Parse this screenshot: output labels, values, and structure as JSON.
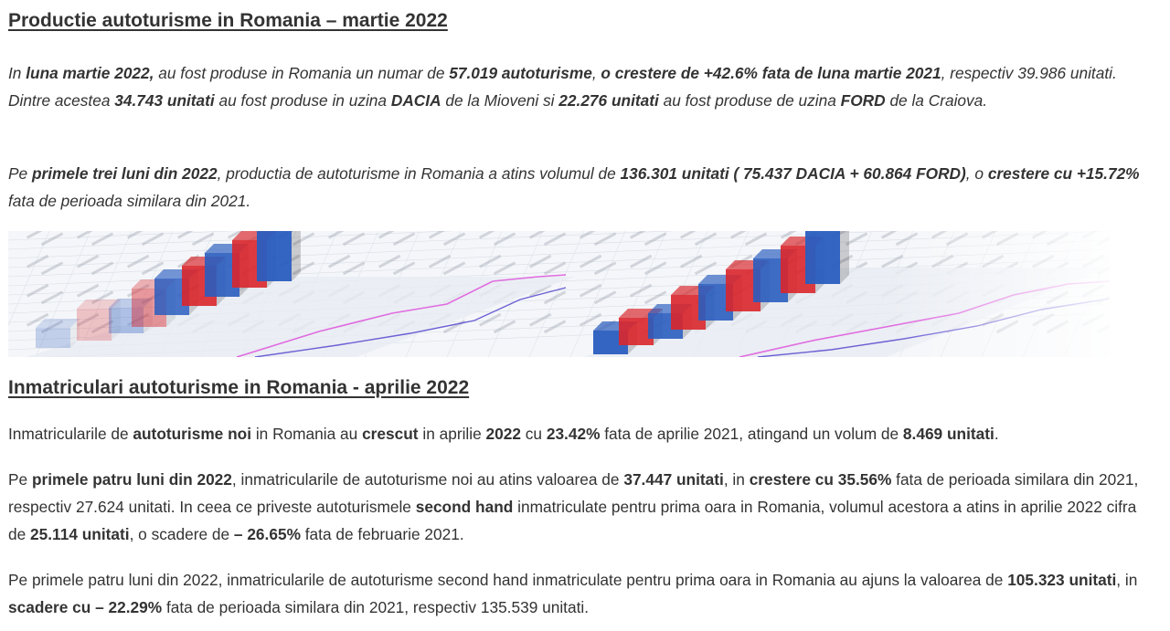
{
  "section1": {
    "title": "Productie autoturisme in Romania – martie 2022",
    "p1": [
      {
        "t": "In ",
        "b": false
      },
      {
        "t": "luna martie 2022,",
        "b": true
      },
      {
        "t": " au fost produse in Romania un numar de ",
        "b": false
      },
      {
        "t": "57.019 autoturisme",
        "b": true
      },
      {
        "t": ", ",
        "b": false
      },
      {
        "t": "o crestere de +42.6% fata de luna martie 2021",
        "b": true
      },
      {
        "t": ", respectiv 39.986 unitati. Dintre acestea ",
        "b": false
      },
      {
        "t": "34.743 unitati",
        "b": true
      },
      {
        "t": " au fost produse in uzina ",
        "b": false
      },
      {
        "t": "DACIA",
        "b": true
      },
      {
        "t": " de la Mioveni si ",
        "b": false
      },
      {
        "t": "22.276 unitati",
        "b": true
      },
      {
        "t": " au fost produse de uzina ",
        "b": false
      },
      {
        "t": "FORD",
        "b": true
      },
      {
        "t": " de la Craiova.",
        "b": false
      }
    ],
    "p2": [
      {
        "t": "Pe ",
        "b": false
      },
      {
        "t": "primele trei luni din 2022",
        "b": true
      },
      {
        "t": ", productia de autoturisme in Romania a atins volumul de ",
        "b": false
      },
      {
        "t": "136.301 unitati ( 75.437 DACIA + 60.864 FORD)",
        "b": true
      },
      {
        "t": ", o ",
        "b": false
      },
      {
        "t": "crestere cu +15.72%",
        "b": true
      },
      {
        "t": " fata de perioada similara din 2021.",
        "b": false
      }
    ]
  },
  "section2": {
    "title": "Inmatriculari autoturisme in Romania - aprilie 2022",
    "p3": [
      {
        "t": "Inmatricularile de ",
        "b": false
      },
      {
        "t": "autoturisme noi",
        "b": true
      },
      {
        "t": " in Romania au ",
        "b": false
      },
      {
        "t": "crescut",
        "b": true
      },
      {
        "t": " in aprilie ",
        "b": false
      },
      {
        "t": "2022",
        "b": true
      },
      {
        "t": " cu ",
        "b": false
      },
      {
        "t": "23.42%",
        "b": true
      },
      {
        "t": " fata de aprilie 2021, atingand un volum de ",
        "b": false
      },
      {
        "t": "8.469 unitati",
        "b": true
      },
      {
        "t": ".",
        "b": false
      }
    ],
    "p4": [
      {
        "t": "Pe ",
        "b": false
      },
      {
        "t": "primele patru luni din 2022",
        "b": true
      },
      {
        "t": ", inmatricularile de autoturisme noi au atins valoarea de ",
        "b": false
      },
      {
        "t": "37.447 unitati",
        "b": true
      },
      {
        "t": ", in ",
        "b": false
      },
      {
        "t": "crestere cu 35.56%",
        "b": true
      },
      {
        "t": " fata de perioada similara din 2021, respectiv 27.624 unitati. In ceea ce priveste autoturismele ",
        "b": false
      },
      {
        "t": "second hand",
        "b": true
      },
      {
        "t": " inmatriculate pentru prima oara in Romania, volumul acestora a atins in aprilie 2022 cifra de ",
        "b": false
      },
      {
        "t": "25.114 unitati",
        "b": true
      },
      {
        "t": ", o scadere de ",
        "b": false
      },
      {
        "t": "– 26.65%",
        "b": true
      },
      {
        "t": " fata de februarie 2021.",
        "b": false
      }
    ],
    "p5": [
      {
        "t": "Pe primele patru luni din 2022, inmatricularile de autoturisme second hand inmatriculate pentru prima oara in Romania au ajuns la valoarea de ",
        "b": false
      },
      {
        "t": "105.323 unitati",
        "b": true
      },
      {
        "t": ", in ",
        "b": false
      },
      {
        "t": "scadere cu – 22.29%",
        "b": true
      },
      {
        "t": " fata de perioada similara din 2021, respectiv 135.539 unitati.",
        "b": false
      }
    ]
  },
  "banner": {
    "colors": {
      "red": "#d9262b",
      "blue": "#2a5dbf",
      "pink": "#e06be0",
      "purple": "#6b5fd4"
    }
  }
}
